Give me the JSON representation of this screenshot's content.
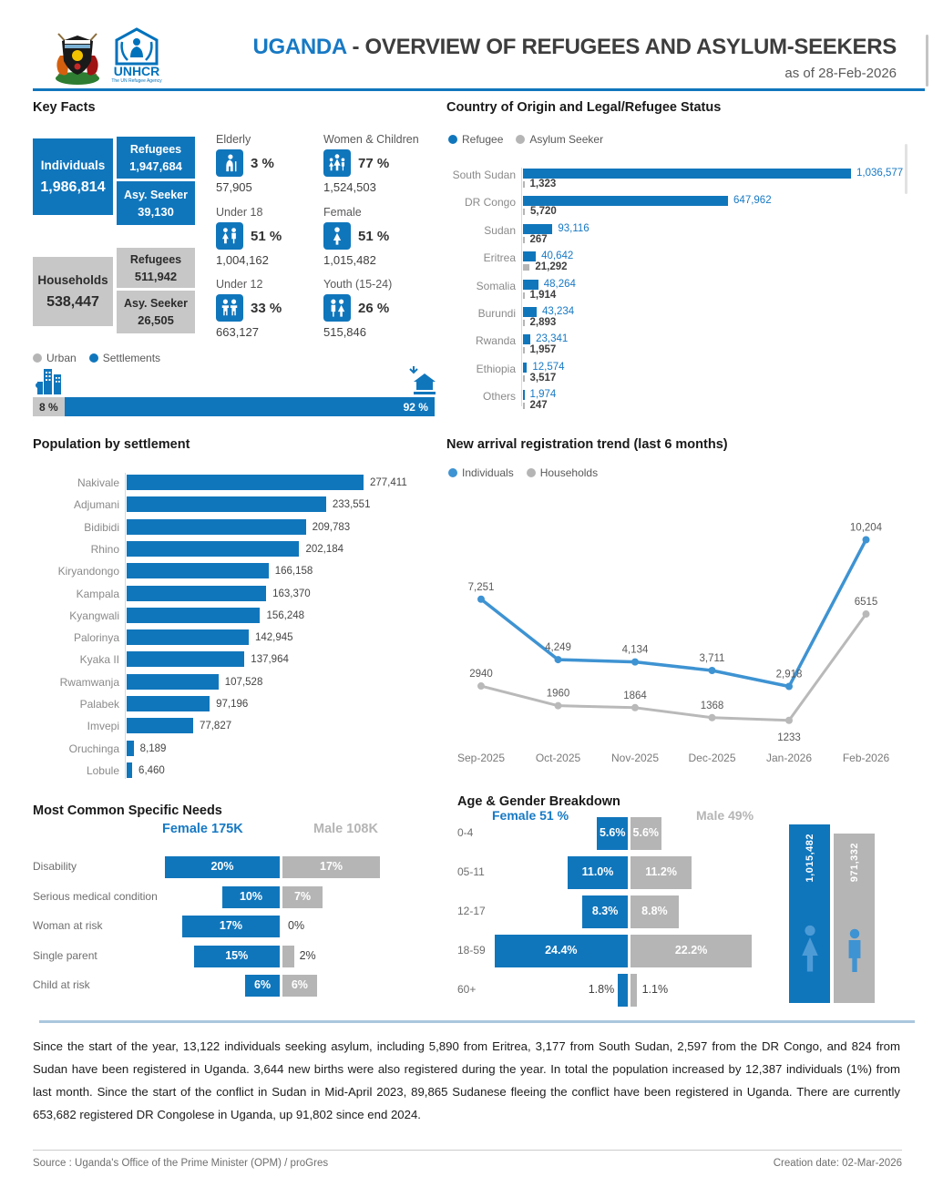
{
  "header": {
    "title_country": "UGANDA",
    "title_rest": " - OVERVIEW OF REFUGEES AND ASYLUM-SEEKERS",
    "as_of": "as of 28-Feb-2026",
    "logo_text": "UNHCR",
    "logo_tagline": "The UN Refugee Agency"
  },
  "sections": {
    "key_facts_title": "Key Facts",
    "country_title": "Country of Origin and Legal/Refugee Status",
    "settlement_title": "Population by settlement",
    "trend_title": "New arrival registration trend (last 6 months)",
    "needs_title": "Most Common Specific Needs",
    "age_title": "Age & Gender Breakdown"
  },
  "key_facts": {
    "individuals": {
      "label": "Individuals",
      "value": "1,986,814"
    },
    "refugees": {
      "label": "Refugees",
      "value": "1,947,684"
    },
    "asylum_seekers": {
      "label": "Asy. Seeker",
      "value": "39,130"
    },
    "households": {
      "label": "Households",
      "value": "538,447"
    },
    "household_refugees": {
      "label": "Refugees",
      "value": "511,942"
    },
    "household_asylum": {
      "label": "Asy. Seeker",
      "value": "26,505"
    },
    "stats": [
      {
        "label": "Elderly",
        "pct": "3 %",
        "count": "57,905"
      },
      {
        "label": "Under 18",
        "pct": "51 %",
        "count": "1,004,162"
      },
      {
        "label": "Under 12",
        "pct": "33 %",
        "count": "663,127"
      },
      {
        "label": "Women & Children",
        "pct": "77 %",
        "count": "1,524,503"
      },
      {
        "label": "Female",
        "pct": "51 %",
        "count": "1,015,482"
      },
      {
        "label": "Youth (15-24)",
        "pct": "26 %",
        "count": "515,846"
      }
    ]
  },
  "chart_data": [
    {
      "id": "location_split",
      "type": "bar",
      "orientation": "stacked-horizontal",
      "legend": [
        "Urban",
        "Settlements"
      ],
      "categories": [
        "Urban",
        "Settlements"
      ],
      "values": [
        8,
        92
      ],
      "labels": [
        "8 %",
        "92 %"
      ]
    },
    {
      "id": "country_origin",
      "type": "bar",
      "orientation": "horizontal-grouped",
      "legend": [
        "Refugee",
        "Asylum Seeker"
      ],
      "categories": [
        "South Sudan",
        "DR Congo",
        "Sudan",
        "Eritrea",
        "Somalia",
        "Burundi",
        "Rwanda",
        "Ethiopia",
        "Others"
      ],
      "series": [
        {
          "name": "Refugee",
          "values": [
            1036577,
            647962,
            93116,
            40642,
            48264,
            43234,
            23341,
            12574,
            1974
          ],
          "labels": [
            "1,036,577",
            "647,962",
            "93,116",
            "40,642",
            "48,264",
            "43,234",
            "23,341",
            "12,574",
            "1,974"
          ]
        },
        {
          "name": "Asylum Seeker",
          "values": [
            1323,
            5720,
            267,
            21292,
            1914,
            2893,
            1957,
            3517,
            247
          ],
          "labels": [
            "1,323",
            "5,720",
            "267",
            "21,292",
            "1,914",
            "2,893",
            "1,957",
            "3,517",
            "247"
          ]
        }
      ],
      "xmax": 1036577
    },
    {
      "id": "settlements",
      "type": "bar",
      "orientation": "horizontal",
      "categories": [
        "Nakivale",
        "Adjumani",
        "Bidibidi",
        "Rhino",
        "Kiryandongo",
        "Kampala",
        "Kyangwali",
        "Palorinya",
        "Kyaka II",
        "Rwamwanja",
        "Palabek",
        "Imvepi",
        "Oruchinga",
        "Lobule"
      ],
      "values": [
        277411,
        233551,
        209783,
        202184,
        166158,
        163370,
        156248,
        142945,
        137964,
        107528,
        97196,
        77827,
        8189,
        6460
      ],
      "labels": [
        "277,411",
        "233,551",
        "209,783",
        "202,184",
        "166,158",
        "163,370",
        "156,248",
        "142,945",
        "137,964",
        "107,528",
        "97,196",
        "77,827",
        "8,189",
        "6,460"
      ],
      "xmax": 277411
    },
    {
      "id": "new_arrivals",
      "type": "line",
      "x": [
        "Sep-2025",
        "Oct-2025",
        "Nov-2025",
        "Dec-2025",
        "Jan-2026",
        "Feb-2026"
      ],
      "series": [
        {
          "name": "Individuals",
          "values": [
            7251,
            4249,
            4134,
            3711,
            2918,
            10204
          ],
          "labels": [
            "7,251",
            "4,249",
            "4,134",
            "3,711",
            "2,918",
            "10,204"
          ]
        },
        {
          "name": "Households",
          "values": [
            2940,
            1960,
            1864,
            1368,
            1233,
            6515
          ],
          "labels": [
            "2940",
            "1960",
            "1864",
            "1368",
            "1233",
            "6515"
          ]
        }
      ],
      "ylim": [
        0,
        11500
      ]
    },
    {
      "id": "specific_needs",
      "type": "bar",
      "orientation": "pyramid",
      "headers": {
        "female": "Female 175K",
        "male": "Male 108K"
      },
      "categories": [
        "Disability",
        "Serious medical condition",
        "Woman at risk",
        "Single parent",
        "Child at risk"
      ],
      "series": [
        {
          "name": "Female",
          "values": [
            20,
            10,
            17,
            15,
            6
          ],
          "labels": [
            "20%",
            "10%",
            "17%",
            "15%",
            "6%"
          ]
        },
        {
          "name": "Male",
          "values": [
            17,
            7,
            0,
            2,
            6
          ],
          "labels": [
            "17%",
            "7%",
            "0%",
            "2%",
            "6%"
          ]
        }
      ]
    },
    {
      "id": "age_gender",
      "type": "bar",
      "orientation": "pyramid",
      "headers": {
        "female": "Female 51 %",
        "male": "Male 49%"
      },
      "categories": [
        "0-4",
        "05-11",
        "12-17",
        "18-59",
        "60+"
      ],
      "series": [
        {
          "name": "Female",
          "values": [
            5.6,
            11.0,
            8.3,
            24.4,
            1.8
          ],
          "labels": [
            "5.6%",
            "11.0%",
            "8.3%",
            "24.4%",
            "1.8%"
          ]
        },
        {
          "name": "Male",
          "values": [
            5.6,
            11.2,
            8.8,
            22.2,
            1.1
          ],
          "labels": [
            "5.6%",
            "11.2%",
            "8.8%",
            "22.2%",
            "1.1%"
          ]
        }
      ],
      "totals": {
        "female": "1,015,482",
        "male": "971,332"
      }
    }
  ],
  "footer": {
    "summary": "Since the start of the year, 13,122 individuals seeking asylum, including 5,890 from Eritrea, 3,177 from South Sudan, 2,597 from the DR Congo, and 824 from Sudan have been registered in Uganda. 3,644 new births were also registered during the year. In total the population increased by 12,387 individuals (1%) from last month. Since the start of the conflict in Sudan in Mid-April 2023, 89,865 Sudanese fleeing the conflict have been registered in Uganda. There are currently 653,682 registered DR Congolese in Uganda, up 91,802 since end 2024.",
    "source": "Source : Uganda's Office of the Prime Minister (OPM) / proGres",
    "creation": "Creation date: 02-Mar-2026"
  }
}
